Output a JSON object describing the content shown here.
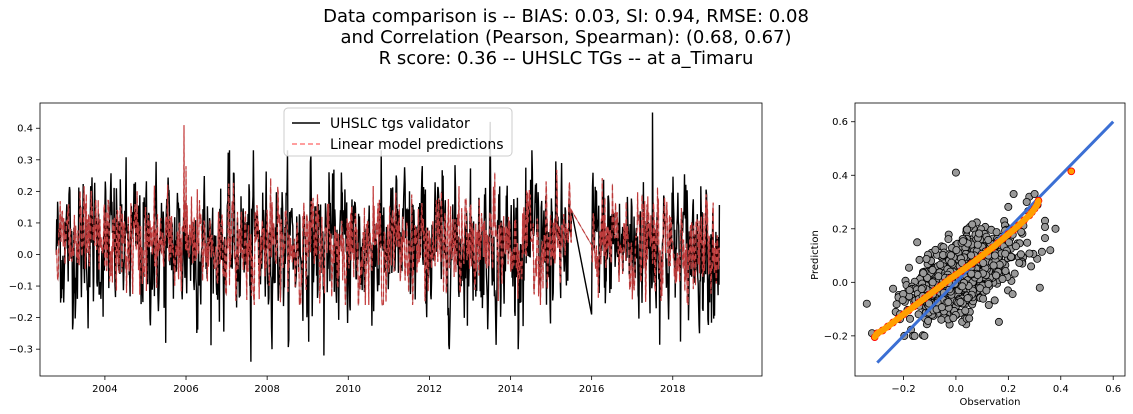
{
  "title_lines": [
    "Data comparison is -- BIAS: 0.03, SI: 0.94, RMSE: 0.08",
    "and Correlation (Pearson, Spearman): (0.68, 0.67)",
    "R score: 0.36 -- UHSLC TGs -- at a_Timaru"
  ],
  "chart_data": [
    {
      "type": "line",
      "xlabel": "",
      "ylabel": "",
      "xlim": [
        2002.4,
        2020.2
      ],
      "ylim": [
        -0.385,
        0.48
      ],
      "x_ticks": [
        2004,
        2006,
        2008,
        2010,
        2012,
        2014,
        2016,
        2018
      ],
      "x_tick_labels": [
        "2004",
        "2006",
        "2008",
        "2010",
        "2012",
        "2014",
        "2016",
        "2018"
      ],
      "y_ticks": [
        -0.3,
        -0.2,
        -0.1,
        0.0,
        0.1,
        0.2,
        0.3,
        0.4
      ],
      "y_tick_labels": [
        "−0.3",
        "−0.2",
        "−0.1",
        "0.0",
        "0.1",
        "0.2",
        "0.3",
        "0.4"
      ],
      "legend": {
        "placement": "top-center"
      },
      "series": [
        {
          "name": "UHSLC tgs validator",
          "color": "#000000",
          "style": "solid",
          "x_range": [
            2002.8,
            2019.15
          ],
          "gap": [
            2015.5,
            2016.0
          ],
          "gap_bridge": [
            [
              2015.5,
              0.14
            ],
            [
              2016.0,
              -0.19
            ]
          ],
          "peaks": [
            [
              2017.5,
              0.45
            ],
            [
              2013.5,
              0.42
            ],
            [
              2007.6,
              -0.34
            ],
            [
              2009.4,
              -0.32
            ],
            [
              2005.5,
              -0.28
            ]
          ]
        },
        {
          "name": "Linear model predictions",
          "color": "#ff7f7f",
          "style": "dashed",
          "x_range": [
            2002.8,
            2019.15
          ],
          "gap": [
            2015.5,
            2016.0
          ],
          "gap_bridge": [
            [
              2015.5,
              0.14
            ],
            [
              2016.0,
              0.03
            ]
          ],
          "peaks": [
            [
              2005.95,
              0.41
            ],
            [
              2006.0,
              0.28
            ]
          ]
        }
      ],
      "overlay_color": "#800000"
    },
    {
      "type": "scatter",
      "xlabel": "Observation",
      "ylabel": "Prediction",
      "xlim": [
        -0.385,
        0.645
      ],
      "ylim": [
        -0.35,
        0.67
      ],
      "x_ticks": [
        -0.2,
        0.0,
        0.2,
        0.4,
        0.6
      ],
      "x_tick_labels": [
        "−0.2",
        "0.0",
        "0.2",
        "0.4",
        "0.6"
      ],
      "y_ticks": [
        -0.2,
        0.0,
        0.2,
        0.4,
        0.6
      ],
      "y_tick_labels": [
        "−0.2",
        "0.0",
        "0.2",
        "0.4",
        "0.6"
      ],
      "points_color": "#999999",
      "points_edge": "#000000",
      "reference_line": {
        "from": [
          -0.3,
          -0.3
        ],
        "to": [
          0.6,
          0.6
        ],
        "color": "#3b6fd4"
      },
      "qq_color": "#ff9f00",
      "qq_edge": "#ff0000",
      "qq_points": [
        [
          -0.31,
          -0.205
        ],
        [
          -0.3,
          -0.19
        ],
        [
          -0.28,
          -0.18
        ],
        [
          -0.26,
          -0.165
        ],
        [
          -0.24,
          -0.15
        ],
        [
          -0.22,
          -0.135
        ],
        [
          -0.2,
          -0.12
        ],
        [
          -0.18,
          -0.105
        ],
        [
          -0.16,
          -0.09
        ],
        [
          -0.14,
          -0.075
        ],
        [
          -0.12,
          -0.06
        ],
        [
          -0.1,
          -0.045
        ],
        [
          -0.08,
          -0.03
        ],
        [
          -0.06,
          -0.015
        ],
        [
          -0.04,
          0.0
        ],
        [
          -0.02,
          0.015
        ],
        [
          0.0,
          0.028
        ],
        [
          0.02,
          0.042
        ],
        [
          0.04,
          0.056
        ],
        [
          0.06,
          0.07
        ],
        [
          0.08,
          0.085
        ],
        [
          0.1,
          0.1
        ],
        [
          0.12,
          0.115
        ],
        [
          0.14,
          0.13
        ],
        [
          0.16,
          0.147
        ],
        [
          0.18,
          0.163
        ],
        [
          0.2,
          0.18
        ],
        [
          0.22,
          0.196
        ],
        [
          0.24,
          0.213
        ],
        [
          0.26,
          0.232
        ],
        [
          0.28,
          0.25
        ],
        [
          0.29,
          0.262
        ],
        [
          0.3,
          0.275
        ],
        [
          0.31,
          0.29
        ],
        [
          0.315,
          0.305
        ],
        [
          0.44,
          0.415
        ]
      ],
      "outliers": [
        [
          0.0,
          0.41
        ],
        [
          0.38,
          0.2
        ],
        [
          0.28,
          0.32
        ],
        [
          0.3,
          0.33
        ],
        [
          0.27,
          0.3
        ],
        [
          -0.34,
          -0.08
        ],
        [
          -0.32,
          -0.19
        ],
        [
          0.32,
          -0.02
        ],
        [
          0.36,
          0.12
        ],
        [
          0.22,
          0.33
        ]
      ]
    }
  ]
}
